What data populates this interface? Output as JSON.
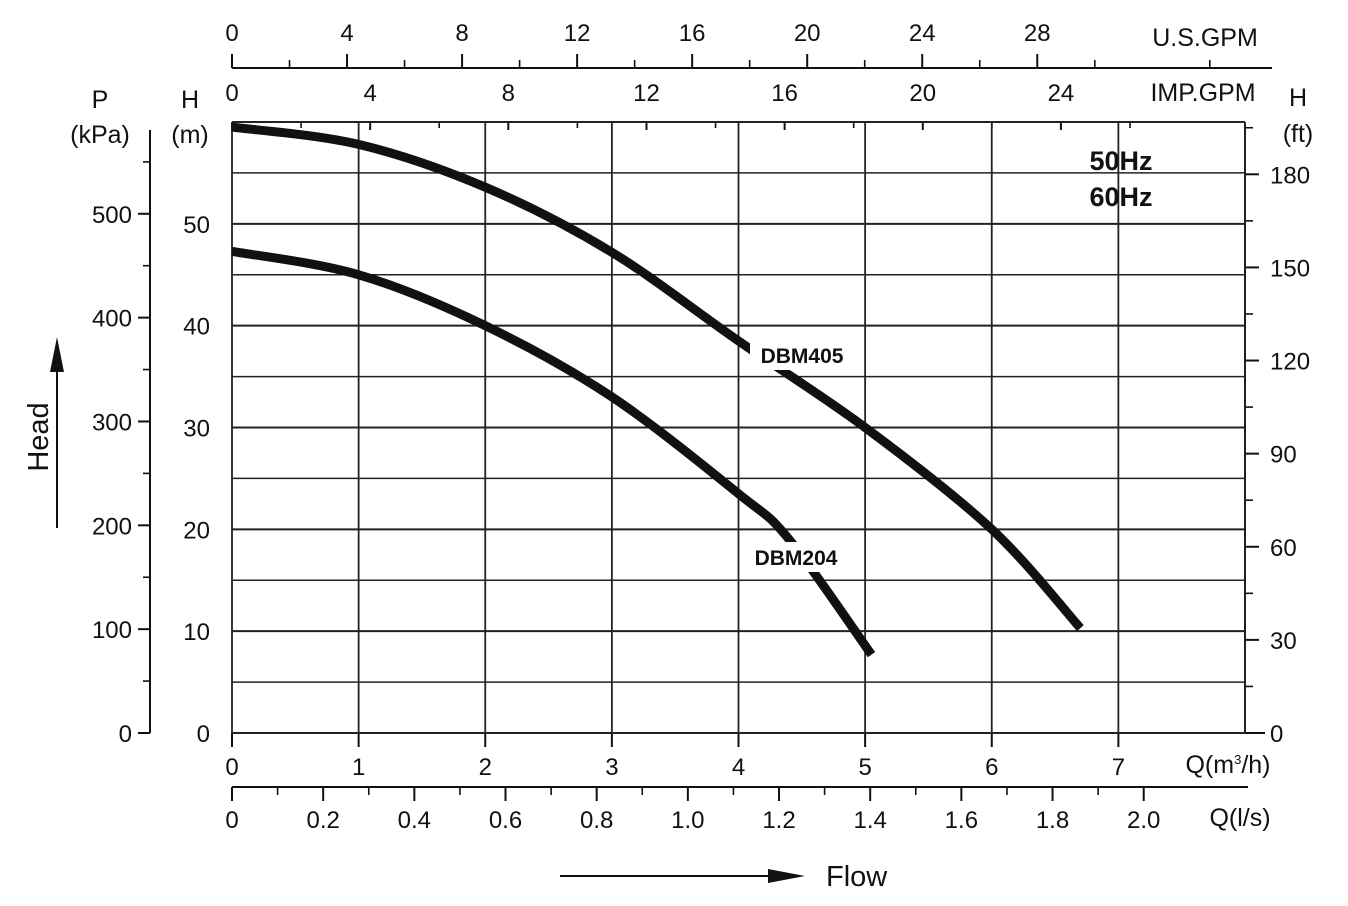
{
  "chart_data": {
    "type": "line",
    "title": "",
    "frequency_labels": [
      "50Hz",
      "60Hz"
    ],
    "x_axes": {
      "us_gpm": {
        "label": "U.S.GPM",
        "ticks": [
          0,
          4,
          8,
          12,
          16,
          20,
          24,
          28
        ]
      },
      "imp_gpm": {
        "label": "IMP.GPM",
        "ticks": [
          0,
          4,
          8,
          12,
          16,
          20,
          24
        ]
      },
      "q_m3h": {
        "label_prefix": "Q(m",
        "label_sup": "3",
        "label_suffix": "/h)",
        "ticks": [
          0,
          1,
          2,
          3,
          4,
          5,
          6,
          7
        ],
        "range": [
          0,
          8
        ]
      },
      "q_ls": {
        "label": "Q(l/s)",
        "ticks": [
          "0",
          "0.2",
          "0.4",
          "0.6",
          "0.8",
          "1.0",
          "1.2",
          "1.4",
          "1.6",
          "1.8",
          "2.0"
        ]
      }
    },
    "y_axes": {
      "p_kpa": {
        "label_top": "P",
        "label_bottom": "(kPa)",
        "ticks": [
          0,
          100,
          200,
          300,
          400,
          500
        ]
      },
      "h_m": {
        "label_top": "H",
        "label_bottom": "(m)",
        "ticks": [
          0,
          10,
          20,
          30,
          40,
          50
        ],
        "range": [
          0,
          60
        ]
      },
      "h_ft": {
        "label_top": "H",
        "label_bottom": "(ft)",
        "ticks": [
          0,
          30,
          60,
          90,
          120,
          150,
          180
        ]
      }
    },
    "axis_words": {
      "y": "Head",
      "x": "Flow"
    },
    "grid": true,
    "series": [
      {
        "name": "DBM405",
        "x": [
          0,
          1,
          2,
          3,
          4,
          5,
          6,
          6.7
        ],
        "y": [
          59.5,
          57.8,
          53.6,
          47.2,
          38.5,
          30.0,
          20.0,
          10.3
        ]
      },
      {
        "name": "DBM204",
        "x": [
          0,
          1,
          2,
          3,
          4,
          4.4,
          5.05
        ],
        "y": [
          47.3,
          45.0,
          40.0,
          33.0,
          23.5,
          19.0,
          7.7
        ]
      }
    ],
    "curve_labels": [
      {
        "series": "DBM405",
        "text": "DBM405"
      },
      {
        "series": "DBM204",
        "text": "DBM204"
      }
    ]
  }
}
